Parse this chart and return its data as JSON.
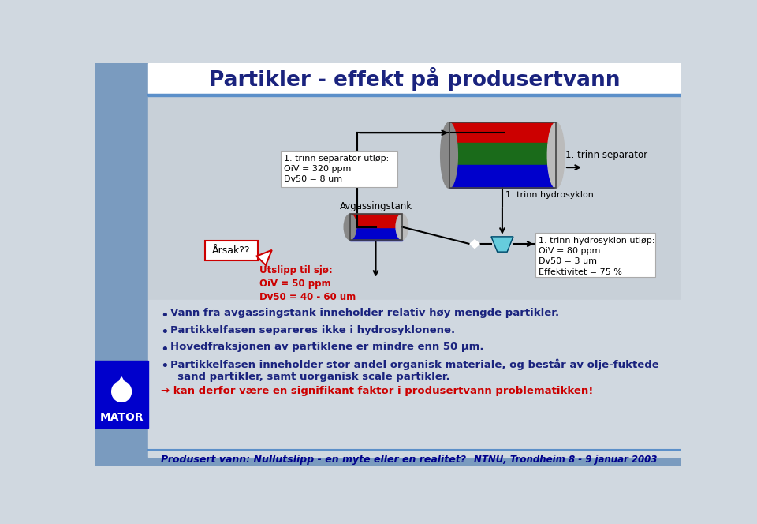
{
  "title": "Partikler - effekt på produsertvann",
  "bg_color": "#d0d8e0",
  "sidebar_color": "#7a9bbf",
  "title_color": "#1a237e",
  "separator_color": "#5b8fc9",
  "bullet_points": [
    "Vann fra avgassingstank inneholder relativ høy mengde partikler.",
    "Partikkelfasen separeres ikke i hydrosyklonene.",
    "Hovedfraksjonen av partiklene er mindre enn 50 μm.",
    "Partikkelfasen inneholder stor andel organisk materiale, og består av olje-fuktede\n  sand partikler, samt uorganisk scale partikler."
  ],
  "arrow_line": "→ kan derfor være en signifikant faktor i produsertvann problematikken!",
  "footer_left": "Produsert vann: Nullutslipp - en myte eller en realitet?",
  "footer_right": "NTNU, Trondheim 8 - 9 januar 2003",
  "separator_utlop_label": "1. trinn separator utløp:\nOiV = 320 ppm\nDv50 = 8 um",
  "hydrosyklon_label": "1. trinn hydrosyklon",
  "hydrosyklon_utlop_label": "1. trinn hydrosyklon utløp:\nOiV = 80 ppm\nDv50 = 3 um\nEffektivitet = 75 %",
  "avgassingstank_label": "Avgassingstank",
  "aarsak_label": "Årsak??",
  "utslipp_label": "Utslipp til sjø:\nOiV = 50 ppm\nDv50 = 40 - 60 um",
  "separator_label": "1. trinn separator",
  "mator_color": "#0000cc",
  "red_color": "#cc0000",
  "dark_blue": "#00008b",
  "bullet_color": "#1a237e",
  "arrow_color": "#cc0000",
  "diagram_bg": "#c8d0d8"
}
